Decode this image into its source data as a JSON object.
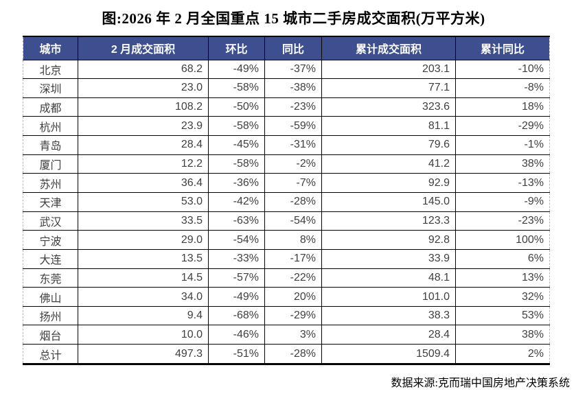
{
  "page": {
    "title": "图:2026 年 2 月全国重点 15 城市二手房成交面积(万平方米)",
    "source": "数据来源:克而瑞中国房地产决策系统"
  },
  "colors": {
    "header_bg": "#3D4F8F",
    "header_text": "#FFFFFF",
    "cell_text": "#3F3F3F",
    "grid_line": "#000000"
  },
  "table": {
    "headers": [
      "城市",
      "2 月成交面积",
      "环比",
      "同比",
      "累计成交面积",
      "累计同比"
    ],
    "rows": [
      [
        "北京",
        "68.2",
        "-49%",
        "-37%",
        "203.1",
        "-10%"
      ],
      [
        "深圳",
        "23.0",
        "-58%",
        "-38%",
        "77.1",
        "-8%"
      ],
      [
        "成都",
        "108.2",
        "-50%",
        "-23%",
        "323.6",
        "18%"
      ],
      [
        "杭州",
        "23.9",
        "-58%",
        "-59%",
        "81.1",
        "-29%"
      ],
      [
        "青岛",
        "28.4",
        "-45%",
        "-31%",
        "79.6",
        "-1%"
      ],
      [
        "厦门",
        "12.2",
        "-58%",
        "-2%",
        "41.2",
        "38%"
      ],
      [
        "苏州",
        "36.4",
        "-36%",
        "-7%",
        "92.9",
        "-13%"
      ],
      [
        "天津",
        "53.0",
        "-42%",
        "-28%",
        "145.0",
        "-9%"
      ],
      [
        "武汉",
        "33.5",
        "-63%",
        "-54%",
        "123.3",
        "-23%"
      ],
      [
        "宁波",
        "29.0",
        "-54%",
        "8%",
        "92.8",
        "100%"
      ],
      [
        "大连",
        "13.5",
        "-33%",
        "-17%",
        "33.9",
        "6%"
      ],
      [
        "东莞",
        "14.5",
        "-57%",
        "-22%",
        "48.1",
        "13%"
      ],
      [
        "佛山",
        "34.0",
        "-49%",
        "20%",
        "101.0",
        "32%"
      ],
      [
        "扬州",
        "9.4",
        "-68%",
        "-29%",
        "38.3",
        "53%"
      ],
      [
        "烟台",
        "10.0",
        "-46%",
        "3%",
        "28.4",
        "38%"
      ],
      [
        "总计",
        "497.3",
        "-51%",
        "-28%",
        "1509.4",
        "2%"
      ]
    ]
  },
  "chart_data": {
    "type": "table",
    "title": "图:2026年2月全国重点15城市二手房成交面积(万平方米)",
    "unit": "万平方米",
    "columns": [
      "城市",
      "2月成交面积",
      "环比",
      "同比",
      "累计成交面积",
      "累计同比"
    ],
    "rows": [
      {
        "city": "北京",
        "feb_area": 68.2,
        "mom_pct": -49,
        "yoy_pct": -37,
        "cum_area": 203.1,
        "cum_yoy_pct": -10
      },
      {
        "city": "深圳",
        "feb_area": 23.0,
        "mom_pct": -58,
        "yoy_pct": -38,
        "cum_area": 77.1,
        "cum_yoy_pct": -8
      },
      {
        "city": "成都",
        "feb_area": 108.2,
        "mom_pct": -50,
        "yoy_pct": -23,
        "cum_area": 323.6,
        "cum_yoy_pct": 18
      },
      {
        "city": "杭州",
        "feb_area": 23.9,
        "mom_pct": -58,
        "yoy_pct": -59,
        "cum_area": 81.1,
        "cum_yoy_pct": -29
      },
      {
        "city": "青岛",
        "feb_area": 28.4,
        "mom_pct": -45,
        "yoy_pct": -31,
        "cum_area": 79.6,
        "cum_yoy_pct": -1
      },
      {
        "city": "厦门",
        "feb_area": 12.2,
        "mom_pct": -58,
        "yoy_pct": -2,
        "cum_area": 41.2,
        "cum_yoy_pct": 38
      },
      {
        "city": "苏州",
        "feb_area": 36.4,
        "mom_pct": -36,
        "yoy_pct": -7,
        "cum_area": 92.9,
        "cum_yoy_pct": -13
      },
      {
        "city": "天津",
        "feb_area": 53.0,
        "mom_pct": -42,
        "yoy_pct": -28,
        "cum_area": 145.0,
        "cum_yoy_pct": -9
      },
      {
        "city": "武汉",
        "feb_area": 33.5,
        "mom_pct": -63,
        "yoy_pct": -54,
        "cum_area": 123.3,
        "cum_yoy_pct": -23
      },
      {
        "city": "宁波",
        "feb_area": 29.0,
        "mom_pct": -54,
        "yoy_pct": 8,
        "cum_area": 92.8,
        "cum_yoy_pct": 100
      },
      {
        "city": "大连",
        "feb_area": 13.5,
        "mom_pct": -33,
        "yoy_pct": -17,
        "cum_area": 33.9,
        "cum_yoy_pct": 6
      },
      {
        "city": "东莞",
        "feb_area": 14.5,
        "mom_pct": -57,
        "yoy_pct": -22,
        "cum_area": 48.1,
        "cum_yoy_pct": 13
      },
      {
        "city": "佛山",
        "feb_area": 34.0,
        "mom_pct": -49,
        "yoy_pct": 20,
        "cum_area": 101.0,
        "cum_yoy_pct": 32
      },
      {
        "city": "扬州",
        "feb_area": 9.4,
        "mom_pct": -68,
        "yoy_pct": -29,
        "cum_area": 38.3,
        "cum_yoy_pct": 53
      },
      {
        "city": "烟台",
        "feb_area": 10.0,
        "mom_pct": -46,
        "yoy_pct": 3,
        "cum_area": 28.4,
        "cum_yoy_pct": 38
      },
      {
        "city": "总计",
        "feb_area": 497.3,
        "mom_pct": -51,
        "yoy_pct": -28,
        "cum_area": 1509.4,
        "cum_yoy_pct": 2
      }
    ],
    "source": "数据来源:克而瑞中国房地产决策系统"
  }
}
